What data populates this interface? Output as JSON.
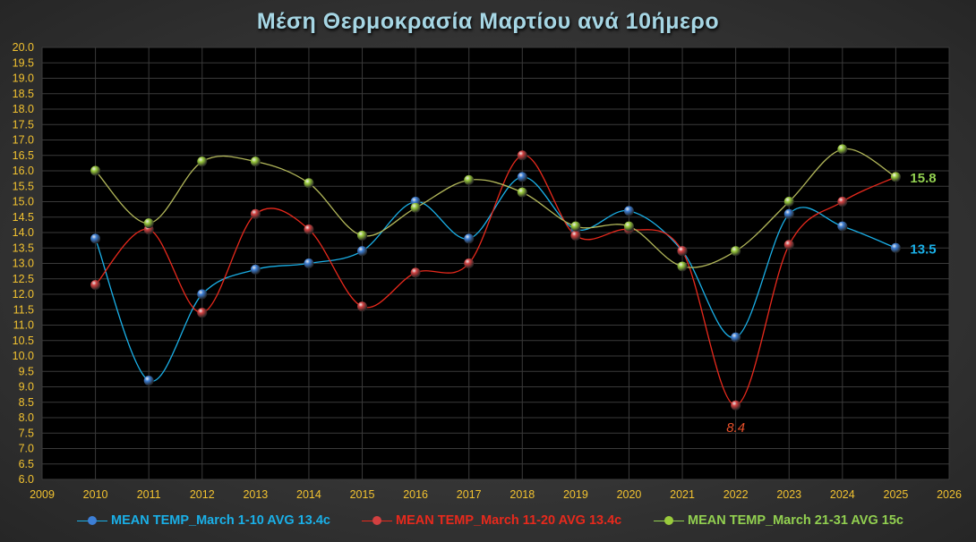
{
  "chart_data": {
    "type": "line",
    "title": "Μέση Θερμοκρασία Μαρτίου ανά 10ήμερο",
    "xlabel": "",
    "ylabel": "",
    "xlim": [
      2009,
      2026
    ],
    "ylim": [
      6.0,
      20.0
    ],
    "ytick_step": 0.5,
    "x": [
      2010,
      2011,
      2012,
      2013,
      2014,
      2015,
      2016,
      2017,
      2018,
      2019,
      2020,
      2021,
      2022,
      2023,
      2024,
      2025
    ],
    "xticks": [
      2009,
      2010,
      2011,
      2012,
      2013,
      2014,
      2015,
      2016,
      2017,
      2018,
      2019,
      2020,
      2021,
      2022,
      2023,
      2024,
      2025,
      2026
    ],
    "grid": true,
    "legend_position": "bottom",
    "series": [
      {
        "name": "MEAN TEMP_March 1-10 AVG 13.4c",
        "color": "#1ab0e8",
        "marker": "#3d7fd6",
        "values": [
          13.8,
          9.2,
          12.0,
          12.8,
          13.0,
          13.4,
          15.0,
          13.8,
          15.8,
          14.1,
          14.7,
          13.4,
          10.6,
          14.6,
          14.2,
          13.5
        ]
      },
      {
        "name": "MEAN TEMP_March 11-20 AVG 13.4c",
        "color": "#e8291c",
        "marker": "#d24040",
        "values": [
          12.3,
          14.1,
          11.4,
          14.6,
          14.1,
          11.6,
          12.7,
          13.0,
          16.5,
          13.9,
          14.1,
          13.4,
          8.4,
          13.6,
          15.0,
          15.8
        ]
      },
      {
        "name": "MEAN TEMP_March 21-31 AVG 15c",
        "color": "#b3b85a",
        "marker": "#9acb3c",
        "values": [
          16.0,
          14.3,
          16.3,
          16.3,
          15.6,
          13.9,
          14.8,
          15.7,
          15.3,
          14.2,
          14.2,
          12.9,
          13.4,
          15.0,
          16.7,
          15.8
        ]
      }
    ],
    "annotations": [
      {
        "text": "15.8",
        "series": 2,
        "x": 2025,
        "color": "#92d050"
      },
      {
        "text": "13.5",
        "series": 0,
        "x": 2025,
        "color": "#1ab0e8"
      },
      {
        "text": "8.4",
        "series": 1,
        "x": 2022,
        "color": "#e8502a"
      }
    ]
  }
}
